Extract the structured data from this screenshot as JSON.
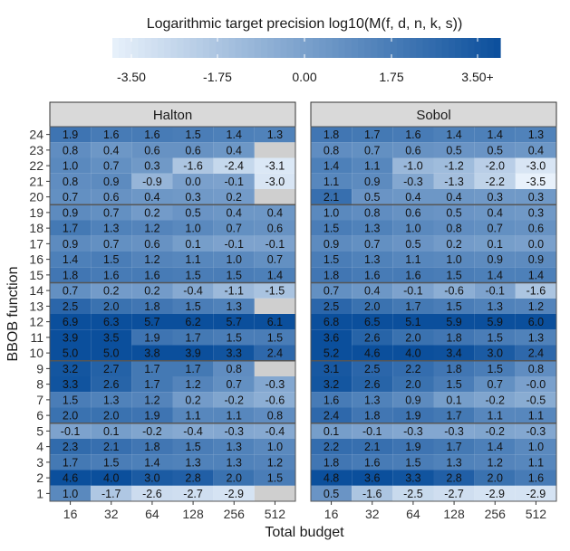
{
  "chart_data": {
    "type": "heatmap",
    "legend": {
      "title": "Logarithmic target precision log10(M(f, d, n, k, s))",
      "ticks": [
        "-3.50",
        "-1.75",
        "0.00",
        "1.75",
        "3.50+"
      ],
      "range": [
        -3.5,
        3.5
      ],
      "low_color": "#e8f1fb",
      "high_color": "#0b4f9c",
      "placement": "top"
    },
    "xlabel": "Total budget",
    "ylabel": "BBOB function",
    "x_categories": [
      "16",
      "32",
      "64",
      "128",
      "256",
      "512"
    ],
    "y_categories": [
      "1",
      "2",
      "3",
      "4",
      "5",
      "6",
      "7",
      "8",
      "9",
      "10",
      "11",
      "12",
      "13",
      "14",
      "15",
      "16",
      "17",
      "18",
      "19",
      "20",
      "21",
      "22",
      "23",
      "24"
    ],
    "panels": [
      {
        "name": "Halton",
        "values": [
          [
            1.0,
            -1.7,
            -2.6,
            -2.7,
            -2.9,
            null
          ],
          [
            4.6,
            4.0,
            3.0,
            2.8,
            2.0,
            1.5
          ],
          [
            1.7,
            1.5,
            1.4,
            1.3,
            1.3,
            1.2
          ],
          [
            2.3,
            2.1,
            1.8,
            1.5,
            1.3,
            1.0
          ],
          [
            -0.1,
            0.1,
            -0.2,
            -0.4,
            -0.3,
            -0.4
          ],
          [
            2.0,
            2.0,
            1.9,
            1.1,
            1.1,
            0.8
          ],
          [
            1.5,
            1.3,
            1.2,
            0.2,
            -0.2,
            -0.6
          ],
          [
            3.3,
            2.6,
            1.7,
            1.2,
            0.7,
            -0.3
          ],
          [
            3.2,
            2.7,
            1.7,
            1.7,
            0.8,
            null
          ],
          [
            5.0,
            5.0,
            3.8,
            3.9,
            3.3,
            2.4
          ],
          [
            3.9,
            3.5,
            1.9,
            1.7,
            1.5,
            1.5
          ],
          [
            6.9,
            6.3,
            5.7,
            6.2,
            5.7,
            6.1
          ],
          [
            2.5,
            2.0,
            1.8,
            1.5,
            1.3,
            null
          ],
          [
            0.7,
            0.2,
            0.2,
            -0.4,
            -1.1,
            -1.5
          ],
          [
            1.8,
            1.6,
            1.6,
            1.5,
            1.5,
            1.4
          ],
          [
            1.4,
            1.5,
            1.2,
            1.1,
            1.0,
            0.7
          ],
          [
            0.9,
            0.7,
            0.6,
            0.1,
            -0.1,
            -0.1
          ],
          [
            1.7,
            1.3,
            1.2,
            1.0,
            0.7,
            0.6
          ],
          [
            0.9,
            0.7,
            0.2,
            0.5,
            0.4,
            0.4
          ],
          [
            0.7,
            0.6,
            0.4,
            0.3,
            0.2,
            null
          ],
          [
            0.8,
            0.9,
            -0.9,
            0.0,
            -0.1,
            -3.0
          ],
          [
            1.0,
            0.7,
            0.3,
            -1.6,
            -2.4,
            -3.1
          ],
          [
            0.8,
            0.4,
            0.6,
            0.6,
            0.4,
            null
          ],
          [
            1.9,
            1.6,
            1.6,
            1.5,
            1.4,
            1.3
          ]
        ]
      },
      {
        "name": "Sobol",
        "values": [
          [
            0.5,
            -1.6,
            -2.5,
            -2.7,
            -2.9,
            -2.9
          ],
          [
            4.8,
            3.6,
            3.3,
            2.8,
            2.0,
            1.6
          ],
          [
            1.8,
            1.6,
            1.5,
            1.3,
            1.2,
            1.1
          ],
          [
            2.2,
            2.1,
            1.9,
            1.7,
            1.4,
            1.0
          ],
          [
            0.1,
            -0.1,
            -0.3,
            -0.3,
            -0.2,
            -0.3
          ],
          [
            2.4,
            1.8,
            1.9,
            1.7,
            1.1,
            1.1
          ],
          [
            1.6,
            1.3,
            0.9,
            0.1,
            -0.2,
            -0.5
          ],
          [
            3.2,
            2.6,
            2.0,
            1.5,
            0.7,
            -0.0
          ],
          [
            3.1,
            2.5,
            2.2,
            1.8,
            1.5,
            0.8
          ],
          [
            5.2,
            4.6,
            4.0,
            3.4,
            3.0,
            2.4
          ],
          [
            3.6,
            2.6,
            2.0,
            1.8,
            1.5,
            1.3
          ],
          [
            6.8,
            6.5,
            5.1,
            5.9,
            5.9,
            6.0
          ],
          [
            2.5,
            2.0,
            1.7,
            1.5,
            1.3,
            1.2
          ],
          [
            0.7,
            0.4,
            -0.1,
            -0.6,
            -0.1,
            -1.6
          ],
          [
            1.8,
            1.6,
            1.6,
            1.5,
            1.4,
            1.4
          ],
          [
            1.5,
            1.3,
            1.1,
            1.0,
            0.9,
            0.9
          ],
          [
            0.9,
            0.7,
            0.5,
            0.2,
            0.1,
            0.0
          ],
          [
            1.5,
            1.3,
            1.0,
            0.8,
            0.7,
            0.6
          ],
          [
            1.0,
            0.8,
            0.6,
            0.5,
            0.4,
            0.3
          ],
          [
            2.1,
            0.5,
            0.4,
            0.4,
            0.3,
            0.3
          ],
          [
            1.1,
            0.9,
            -0.3,
            -1.3,
            -2.2,
            -3.5
          ],
          [
            1.4,
            1.1,
            -1.0,
            -1.2,
            -2.0,
            -3.0
          ],
          [
            0.8,
            0.7,
            0.6,
            0.5,
            0.5,
            0.4
          ],
          [
            1.8,
            1.7,
            1.6,
            1.4,
            1.4,
            1.3
          ]
        ]
      }
    ],
    "group_boundaries_after_function": [
      5,
      9,
      14,
      19
    ],
    "missing_color": "#cfcfcf",
    "grid": false
  }
}
